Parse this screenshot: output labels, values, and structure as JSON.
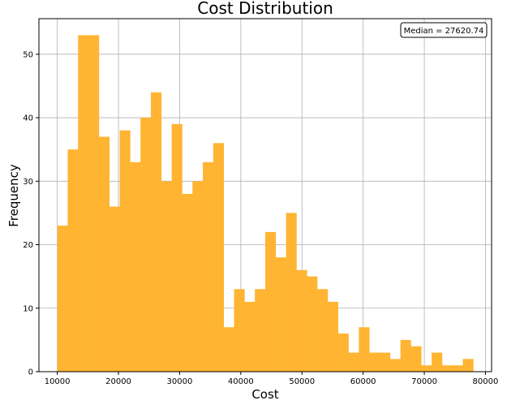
{
  "chart_data": {
    "type": "histogram",
    "title": "Cost Distribution",
    "xlabel": "Cost",
    "ylabel": "Frequency",
    "xlim": [
      7000,
      81000
    ],
    "ylim": [
      0,
      55.6
    ],
    "x_ticks": [
      10000,
      20000,
      30000,
      40000,
      50000,
      60000,
      70000,
      80000
    ],
    "y_ticks": [
      0,
      10,
      20,
      30,
      40,
      50
    ],
    "grid": true,
    "bar_color": "#FFB432",
    "annotation": "Median = 27620.74",
    "annotation_position": "top-right",
    "bin_start": 10000,
    "bin_width": 1700,
    "counts": [
      23,
      35,
      53,
      53,
      37,
      26,
      38,
      33,
      40,
      44,
      30,
      39,
      28,
      30,
      33,
      36,
      7,
      13,
      11,
      13,
      22,
      18,
      25,
      16,
      15,
      13,
      11,
      6,
      3,
      7,
      3,
      3,
      2,
      5,
      4,
      1,
      3,
      1,
      1,
      2
    ]
  }
}
